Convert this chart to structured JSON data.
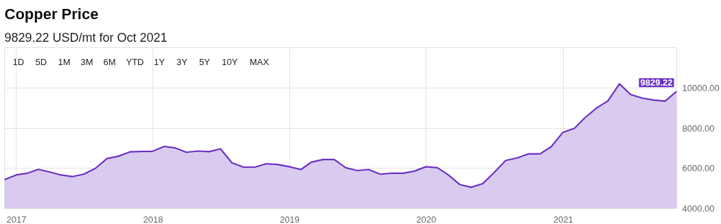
{
  "chart_data": {
    "type": "area",
    "title": "Copper Price",
    "subtitle": "9829.22 USD/mt for Oct 2021",
    "annotations": [
      "1D",
      "5D",
      "1M",
      "3M",
      "6M",
      "YTD",
      "1Y",
      "3Y",
      "5Y",
      "10Y",
      "MAX"
    ],
    "x": [
      "2016-11-30",
      "2016-12-31",
      "2017-01-31",
      "2017-02-28",
      "2017-03-31",
      "2017-04-30",
      "2017-05-31",
      "2017-06-30",
      "2017-07-31",
      "2017-08-31",
      "2017-09-30",
      "2017-10-31",
      "2017-11-30",
      "2017-12-31",
      "2018-01-31",
      "2018-02-28",
      "2018-03-31",
      "2018-04-30",
      "2018-05-31",
      "2018-06-30",
      "2018-07-31",
      "2018-08-31",
      "2018-09-30",
      "2018-10-31",
      "2018-11-30",
      "2018-12-31",
      "2019-01-31",
      "2019-02-28",
      "2019-03-31",
      "2019-04-30",
      "2019-05-31",
      "2019-06-30",
      "2019-07-31",
      "2019-08-31",
      "2019-09-30",
      "2019-10-31",
      "2019-11-30",
      "2019-12-31",
      "2020-01-31",
      "2020-02-29",
      "2020-03-31",
      "2020-04-30",
      "2020-05-31",
      "2020-06-30",
      "2020-07-31",
      "2020-08-31",
      "2020-09-30",
      "2020-10-31",
      "2020-11-30",
      "2020-12-31",
      "2021-01-31",
      "2021-02-28",
      "2021-03-31",
      "2021-04-30",
      "2021-05-31",
      "2021-06-30",
      "2021-07-31",
      "2021-08-31",
      "2021-09-30",
      "2021-10-31"
    ],
    "series": [
      {
        "color": "#6a2fc4",
        "values": [
          5440,
          5670,
          5760,
          5950,
          5820,
          5670,
          5590,
          5710,
          6000,
          6490,
          6600,
          6820,
          6840,
          6850,
          7090,
          7020,
          6800,
          6860,
          6830,
          6970,
          6270,
          6060,
          6060,
          6230,
          6190,
          6080,
          5940,
          6310,
          6440,
          6440,
          6030,
          5890,
          5940,
          5710,
          5760,
          5760,
          5860,
          6080,
          6030,
          5670,
          5190,
          5060,
          5240,
          5790,
          6390,
          6520,
          6720,
          6720,
          7080,
          7790,
          7990,
          8520,
          9000,
          9350,
          10200,
          9670,
          9490,
          9390,
          9340,
          9829.22
        ],
        "value_labels": [
          null,
          null,
          null,
          null,
          null,
          null,
          null,
          null,
          null,
          null,
          null,
          null,
          null,
          null,
          null,
          null,
          null,
          null,
          null,
          null,
          null,
          null,
          null,
          null,
          null,
          null,
          null,
          null,
          null,
          null,
          null,
          null,
          null,
          null,
          null,
          null,
          null,
          null,
          null,
          null,
          null,
          null,
          null,
          null,
          null,
          null,
          null,
          null,
          null,
          null,
          null,
          null,
          null,
          null,
          null,
          null,
          null,
          null,
          null,
          "9829.22"
        ]
      }
    ],
    "xlim": [
      "2016-11-30",
      "2021-10-31"
    ],
    "xticks": [
      "2017",
      "2018",
      "2019",
      "2020",
      "2021"
    ],
    "ylim": [
      4000,
      12000
    ],
    "yticks": [
      {
        "value": 4000,
        "label": "4000.00"
      },
      {
        "value": 6000,
        "label": "6000.00"
      },
      {
        "value": 8000,
        "label": "8000.00"
      },
      {
        "value": 10000,
        "label": "10000.00"
      }
    ],
    "grid": true
  }
}
